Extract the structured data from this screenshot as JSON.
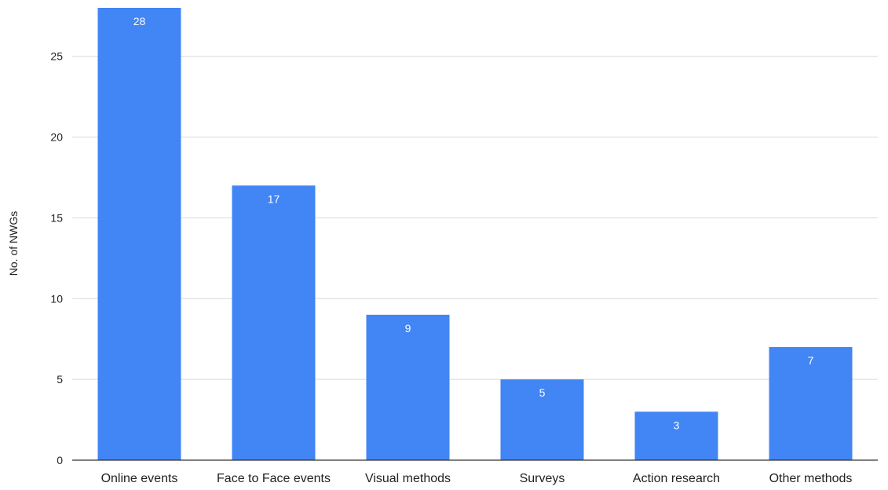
{
  "chart_data": {
    "type": "bar",
    "title": "",
    "xlabel": "",
    "ylabel": "No. of NWGs",
    "categories": [
      "Online events",
      "Face to Face events",
      "Visual methods",
      "Surveys",
      "Action research",
      "Other methods"
    ],
    "values": [
      28,
      17,
      9,
      5,
      3,
      7
    ],
    "data_labels": [
      "28",
      "17",
      "9",
      "5",
      "3",
      "7"
    ],
    "ylim": [
      0,
      28
    ],
    "yticks": [
      0,
      5,
      10,
      15,
      20,
      25
    ],
    "grid": true,
    "legend": "none",
    "colors": {
      "bar": "#4285f4",
      "grid": "#d9d9d9",
      "axis": "#333333",
      "data_label": "#ffffff"
    }
  }
}
